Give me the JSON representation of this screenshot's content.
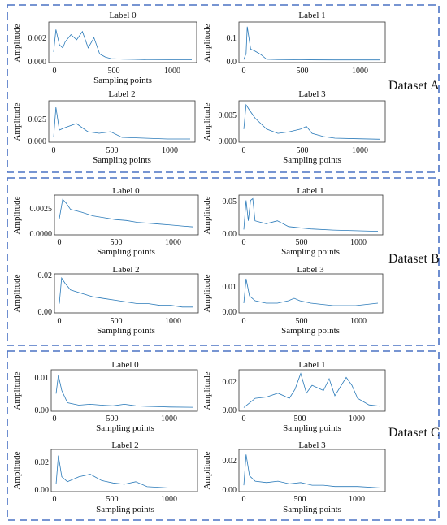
{
  "figure": {
    "line_color": "#2a7ab9",
    "frame_color": "#4a72c4",
    "datasets": [
      {
        "name": "Dataset A",
        "charts": [
          {
            "title": "Label 0",
            "ylabel": "Amplitude",
            "xlabel": "Sampling points",
            "xticks": [
              "0",
              "500",
              "1000"
            ],
            "yticks": [
              "0.000",
              "0.002"
            ]
          },
          {
            "title": "Label 1",
            "ylabel": "Amplitude",
            "xlabel": "",
            "xticks": [
              "0",
              "500",
              "1000"
            ],
            "yticks": [
              "0.0",
              "0.1"
            ]
          },
          {
            "title": "Label 2",
            "ylabel": "Amplitude",
            "xlabel": "Sampling points",
            "xticks": [
              "0",
              "500",
              "1000"
            ],
            "yticks": [
              "0.000",
              "0.025"
            ]
          },
          {
            "title": "Label 3",
            "ylabel": "Amplitude",
            "xlabel": "Sampling points",
            "xticks": [
              "0",
              "500",
              "1000"
            ],
            "yticks": [
              "0.000",
              "0.005"
            ]
          }
        ]
      },
      {
        "name": "Dataset B",
        "charts": [
          {
            "title": "Label 0",
            "ylabel": "Amplitude",
            "xlabel": "Sampling points",
            "xticks": [
              "0",
              "500",
              "1000"
            ],
            "yticks": [
              "0.0000",
              "0.0025"
            ]
          },
          {
            "title": "Label 1",
            "ylabel": "Amplitude",
            "xlabel": "Sampling points",
            "xticks": [
              "0",
              "500",
              "1000"
            ],
            "yticks": [
              "0.00",
              "0.05"
            ]
          },
          {
            "title": "Label 2",
            "ylabel": "Amplitude",
            "xlabel": "Sampling points",
            "xticks": [
              "0",
              "500",
              "1000"
            ],
            "yticks": [
              "0.00",
              "0.02"
            ]
          },
          {
            "title": "Label 3",
            "ylabel": "Amplitude",
            "xlabel": "Sampling points",
            "xticks": [
              "0",
              "500",
              "1000"
            ],
            "yticks": [
              "0.00",
              "0.01"
            ]
          }
        ]
      },
      {
        "name": "Dataset C",
        "charts": [
          {
            "title": "Label 0",
            "ylabel": "Amplitude",
            "xlabel": "Sampling points",
            "xticks": [
              "0",
              "500",
              "1000"
            ],
            "yticks": [
              "0.00",
              "0.01"
            ]
          },
          {
            "title": "Label 1",
            "ylabel": "Amplitude",
            "xlabel": "Sampling points",
            "xticks": [
              "0",
              "500",
              "1000"
            ],
            "yticks": [
              "0.00",
              "0.02"
            ]
          },
          {
            "title": "Label 2",
            "ylabel": "Amplitude",
            "xlabel": "Sampling points",
            "xticks": [
              "0",
              "500",
              "1000"
            ],
            "yticks": [
              "0.00",
              "0.02"
            ]
          },
          {
            "title": "Label 3",
            "ylabel": "Amplitude",
            "xlabel": "Sampling points",
            "xticks": [
              "0",
              "500",
              "1000"
            ],
            "yticks": [
              "0.00",
              "0.02"
            ]
          }
        ]
      }
    ]
  },
  "chart_data": [
    {
      "type": "line",
      "title": "Label 0",
      "xlabel": "Sampling points",
      "ylabel": "Amplitude",
      "xlim": [
        0,
        1200
      ],
      "ylim": [
        0,
        0.0035
      ],
      "x": [
        0,
        20,
        50,
        80,
        100,
        150,
        200,
        250,
        300,
        350,
        400,
        450,
        500,
        600,
        700,
        800,
        1000,
        1200
      ],
      "y": [
        0.0008,
        0.003,
        0.0015,
        0.0012,
        0.0018,
        0.0025,
        0.002,
        0.0028,
        0.0012,
        0.0022,
        0.0006,
        0.0003,
        0.00015,
        0.0001,
        8e-05,
        5e-05,
        4e-05,
        3e-05
      ]
    },
    {
      "type": "line",
      "title": "Label 1",
      "xlabel": "",
      "ylabel": "Amplitude",
      "xlim": [
        0,
        1200
      ],
      "ylim": [
        0,
        0.16
      ],
      "x": [
        0,
        20,
        30,
        60,
        100,
        150,
        200,
        300,
        500,
        800,
        1200
      ],
      "y": [
        0.003,
        0.03,
        0.15,
        0.05,
        0.04,
        0.025,
        0.004,
        0.003,
        0.002,
        0.001,
        0.001
      ]
    },
    {
      "type": "line",
      "title": "Label 2",
      "xlabel": "Sampling points",
      "ylabel": "Amplitude",
      "xlim": [
        0,
        1200
      ],
      "ylim": [
        0,
        0.045
      ],
      "x": [
        0,
        20,
        50,
        100,
        200,
        300,
        400,
        500,
        600,
        800,
        1000,
        1200
      ],
      "y": [
        0.003,
        0.04,
        0.012,
        0.015,
        0.02,
        0.01,
        0.008,
        0.01,
        0.003,
        0.002,
        0.001,
        0.001
      ]
    },
    {
      "type": "line",
      "title": "Label 3",
      "xlabel": "Sampling points",
      "ylabel": "Amplitude",
      "xlim": [
        0,
        1200
      ],
      "ylim": [
        0,
        0.0068
      ],
      "x": [
        0,
        20,
        50,
        100,
        200,
        300,
        400,
        500,
        550,
        600,
        700,
        800,
        1000,
        1200
      ],
      "y": [
        0.002,
        0.0065,
        0.0055,
        0.004,
        0.002,
        0.0012,
        0.0015,
        0.002,
        0.0025,
        0.0012,
        0.0006,
        0.0003,
        0.0002,
        0.0001
      ]
    },
    {
      "type": "line",
      "title": "Label 0",
      "xlabel": "Sampling points",
      "ylabel": "Amplitude",
      "xlim": [
        0,
        1200
      ],
      "ylim": [
        0,
        0.0038
      ],
      "x": [
        0,
        30,
        60,
        100,
        200,
        300,
        400,
        500,
        600,
        700,
        800,
        900,
        1000,
        1100,
        1200
      ],
      "y": [
        0.0015,
        0.0036,
        0.0032,
        0.0025,
        0.0022,
        0.0018,
        0.0016,
        0.0014,
        0.0013,
        0.0011,
        0.001,
        0.0009,
        0.0008,
        0.0007,
        0.0006
      ]
    },
    {
      "type": "line",
      "title": "Label 1",
      "xlabel": "Sampling points",
      "ylabel": "Amplitude",
      "xlim": [
        0,
        1200
      ],
      "ylim": [
        0,
        0.06
      ],
      "x": [
        0,
        20,
        40,
        60,
        80,
        100,
        200,
        300,
        400,
        500,
        600,
        800,
        1000,
        1200
      ],
      "y": [
        0.005,
        0.055,
        0.02,
        0.055,
        0.058,
        0.02,
        0.015,
        0.02,
        0.01,
        0.008,
        0.006,
        0.004,
        0.003,
        0.002
      ]
    },
    {
      "type": "line",
      "title": "Label 2",
      "xlabel": "Sampling points",
      "ylabel": "Amplitude",
      "xlim": [
        0,
        1200
      ],
      "ylim": [
        0,
        0.02
      ],
      "x": [
        0,
        20,
        50,
        100,
        200,
        300,
        400,
        500,
        600,
        700,
        800,
        900,
        1000,
        1100,
        1200
      ],
      "y": [
        0.004,
        0.019,
        0.016,
        0.012,
        0.01,
        0.008,
        0.007,
        0.006,
        0.005,
        0.004,
        0.004,
        0.003,
        0.003,
        0.002,
        0.002
      ]
    },
    {
      "type": "line",
      "title": "Label 3",
      "xlabel": "Sampling points",
      "ylabel": "Amplitude",
      "xlim": [
        0,
        1200
      ],
      "ylim": [
        0,
        0.014
      ],
      "x": [
        0,
        20,
        50,
        100,
        200,
        300,
        400,
        450,
        500,
        600,
        800,
        1000,
        1200
      ],
      "y": [
        0.003,
        0.013,
        0.006,
        0.004,
        0.003,
        0.003,
        0.004,
        0.005,
        0.004,
        0.003,
        0.002,
        0.002,
        0.003
      ]
    },
    {
      "type": "line",
      "title": "Label 0",
      "xlabel": "Sampling points",
      "ylabel": "Amplitude",
      "xlim": [
        0,
        1200
      ],
      "ylim": [
        0,
        0.012
      ],
      "x": [
        0,
        20,
        50,
        100,
        200,
        300,
        400,
        500,
        600,
        700,
        800,
        900,
        1000,
        1200
      ],
      "y": [
        0.005,
        0.011,
        0.006,
        0.002,
        0.0012,
        0.0015,
        0.0012,
        0.001,
        0.0015,
        0.001,
        0.0008,
        0.0007,
        0.0006,
        0.0005
      ]
    },
    {
      "type": "line",
      "title": "Label 1",
      "xlabel": "Sampling points",
      "ylabel": "Amplitude",
      "xlim": [
        0,
        1200
      ],
      "ylim": [
        0,
        0.028
      ],
      "x": [
        0,
        100,
        200,
        300,
        400,
        450,
        500,
        550,
        600,
        700,
        750,
        800,
        900,
        950,
        1000,
        1100,
        1200
      ],
      "y": [
        0.001,
        0.008,
        0.009,
        0.012,
        0.008,
        0.015,
        0.027,
        0.012,
        0.018,
        0.014,
        0.023,
        0.01,
        0.024,
        0.018,
        0.008,
        0.003,
        0.002
      ]
    },
    {
      "type": "line",
      "title": "Label 2",
      "xlabel": "Sampling points",
      "ylabel": "Amplitude",
      "xlim": [
        0,
        1200
      ],
      "ylim": [
        0,
        0.03
      ],
      "x": [
        0,
        20,
        50,
        100,
        200,
        300,
        400,
        500,
        600,
        700,
        800,
        1000,
        1200
      ],
      "y": [
        0.004,
        0.027,
        0.01,
        0.006,
        0.01,
        0.012,
        0.007,
        0.005,
        0.004,
        0.006,
        0.002,
        0.001,
        0.001
      ]
    },
    {
      "type": "line",
      "title": "Label 3",
      "xlabel": "Sampling points",
      "ylabel": "Amplitude",
      "xlim": [
        0,
        1200
      ],
      "ylim": [
        0,
        0.028
      ],
      "x": [
        0,
        20,
        50,
        100,
        200,
        300,
        400,
        500,
        600,
        700,
        800,
        1000,
        1200
      ],
      "y": [
        0.003,
        0.026,
        0.01,
        0.006,
        0.005,
        0.006,
        0.004,
        0.005,
        0.003,
        0.003,
        0.002,
        0.002,
        0.001
      ]
    }
  ]
}
